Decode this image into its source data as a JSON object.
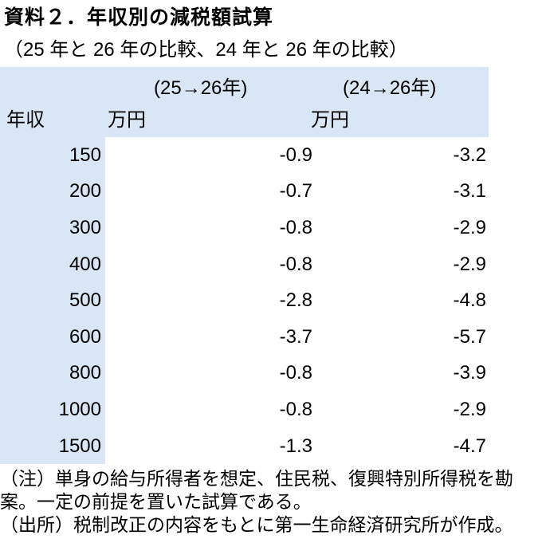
{
  "title": "資料２．年収別の減税額試算",
  "subtitle": "（25 年と 26 年の比較、24 年と 26 年の比較）",
  "colors": {
    "header_bg": "#d9e6f5",
    "text": "#000000"
  },
  "table": {
    "header": {
      "period1": "(25→26年)",
      "period2": "(24→26年)",
      "income_label": "年収",
      "unit1": "万円",
      "unit2": "万円"
    },
    "rows": [
      {
        "income": "150",
        "diff_25_26": "-0.9",
        "diff_24_26": "-3.2"
      },
      {
        "income": "200",
        "diff_25_26": "-0.7",
        "diff_24_26": "-3.1"
      },
      {
        "income": "300",
        "diff_25_26": "-0.8",
        "diff_24_26": "-2.9"
      },
      {
        "income": "400",
        "diff_25_26": "-0.8",
        "diff_24_26": "-2.9"
      },
      {
        "income": "500",
        "diff_25_26": "-2.8",
        "diff_24_26": "-4.8"
      },
      {
        "income": "600",
        "diff_25_26": "-3.7",
        "diff_24_26": "-5.7"
      },
      {
        "income": "800",
        "diff_25_26": "-0.8",
        "diff_24_26": "-3.9"
      },
      {
        "income": "1000",
        "diff_25_26": "-0.8",
        "diff_24_26": "-2.9"
      },
      {
        "income": "1500",
        "diff_25_26": "-1.3",
        "diff_24_26": "-4.7"
      }
    ]
  },
  "notes": {
    "line1": "（注）単身の給与所得者を想定、住民税、復興特別所得税を勘",
    "line2": "案。一定の前提を置いた試算である。",
    "line3": "（出所）税制改正の内容をもとに第一生命経済研究所が作成。"
  }
}
